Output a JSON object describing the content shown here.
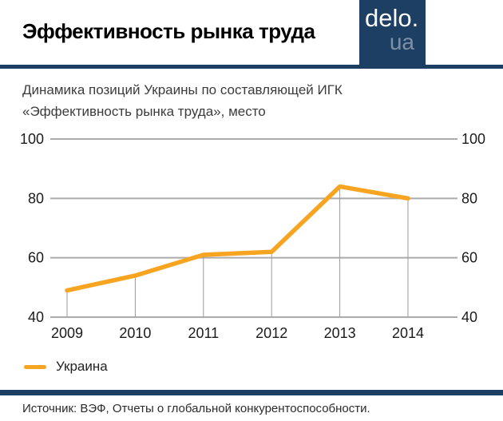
{
  "header": {
    "title": "Эффективность рынка труда",
    "logo": {
      "line1": "delo.",
      "line2": "ua"
    }
  },
  "subtitle": {
    "line1": "Динамика позиций Украины по составляющей ИГК",
    "line2": "«Эффективность рынка труда», место"
  },
  "chart_data": {
    "type": "line",
    "title": "Динамика позиций Украины по составляющей ИГК «Эффективность рынка труда», место",
    "categories": [
      "2009",
      "2010",
      "2011",
      "2012",
      "2013",
      "2014"
    ],
    "series": [
      {
        "name": "Украина",
        "values": [
          49,
          54,
          61,
          62,
          84,
          80
        ],
        "color": "#F7A521"
      }
    ],
    "xlabel": "",
    "ylabel": "",
    "ylim": [
      40,
      100
    ],
    "yticks": [
      40,
      60,
      80,
      100
    ],
    "grid": true,
    "axis_labels_sides": "both",
    "droplines": true,
    "legend_position": "bottom-left"
  },
  "footer": {
    "source": "Источник: ВЭФ, Отчеты о глобальной конкурентоспособности."
  },
  "colors": {
    "accent_navy": "#1D3F63",
    "line_orange": "#F7A521",
    "gridline": "#ABABAB",
    "dropline": "#9B9B9B",
    "tick_text": "#1B1B1B"
  }
}
